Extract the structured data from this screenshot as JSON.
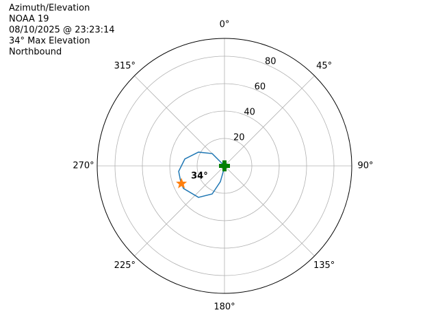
{
  "chart_data": {
    "type": "polar",
    "title_lines": [
      "Azimuth/Elevation",
      "NOAA 19",
      "08/10/2025 @ 23:23:14",
      "34° Max Elevation",
      "Northbound"
    ],
    "theta_zero": "N",
    "theta_direction": "clockwise",
    "thetaticks": [
      {
        "value": 0,
        "label": "0°"
      },
      {
        "value": 45,
        "label": "45°"
      },
      {
        "value": 90,
        "label": "90°"
      },
      {
        "value": 135,
        "label": "135°"
      },
      {
        "value": 180,
        "label": "180°"
      },
      {
        "value": 225,
        "label": "225°"
      },
      {
        "value": 270,
        "label": "270°"
      },
      {
        "value": 315,
        "label": "315°"
      }
    ],
    "rlim": [
      0,
      93
    ],
    "rticks": [
      20,
      40,
      60,
      80
    ],
    "rlabel_angle": 22.5,
    "grid": true,
    "track": {
      "color": "#1f77b4",
      "theta": [
        0,
        315,
        297.8,
        279.8,
        263.2,
        250,
        241.2,
        219.6,
        203.7,
        194.6,
        180
      ],
      "r": [
        0,
        12.7,
        21.5,
        29.4,
        33.7,
        34,
        34.2,
        29.8,
        22.4,
        11.9,
        1
      ]
    },
    "max_point": {
      "color": "#ff7f0e",
      "theta": 247.6,
      "r": 34,
      "label": "34°"
    },
    "start_point": {
      "color": "#008000",
      "theta": 0,
      "r": 0
    }
  }
}
